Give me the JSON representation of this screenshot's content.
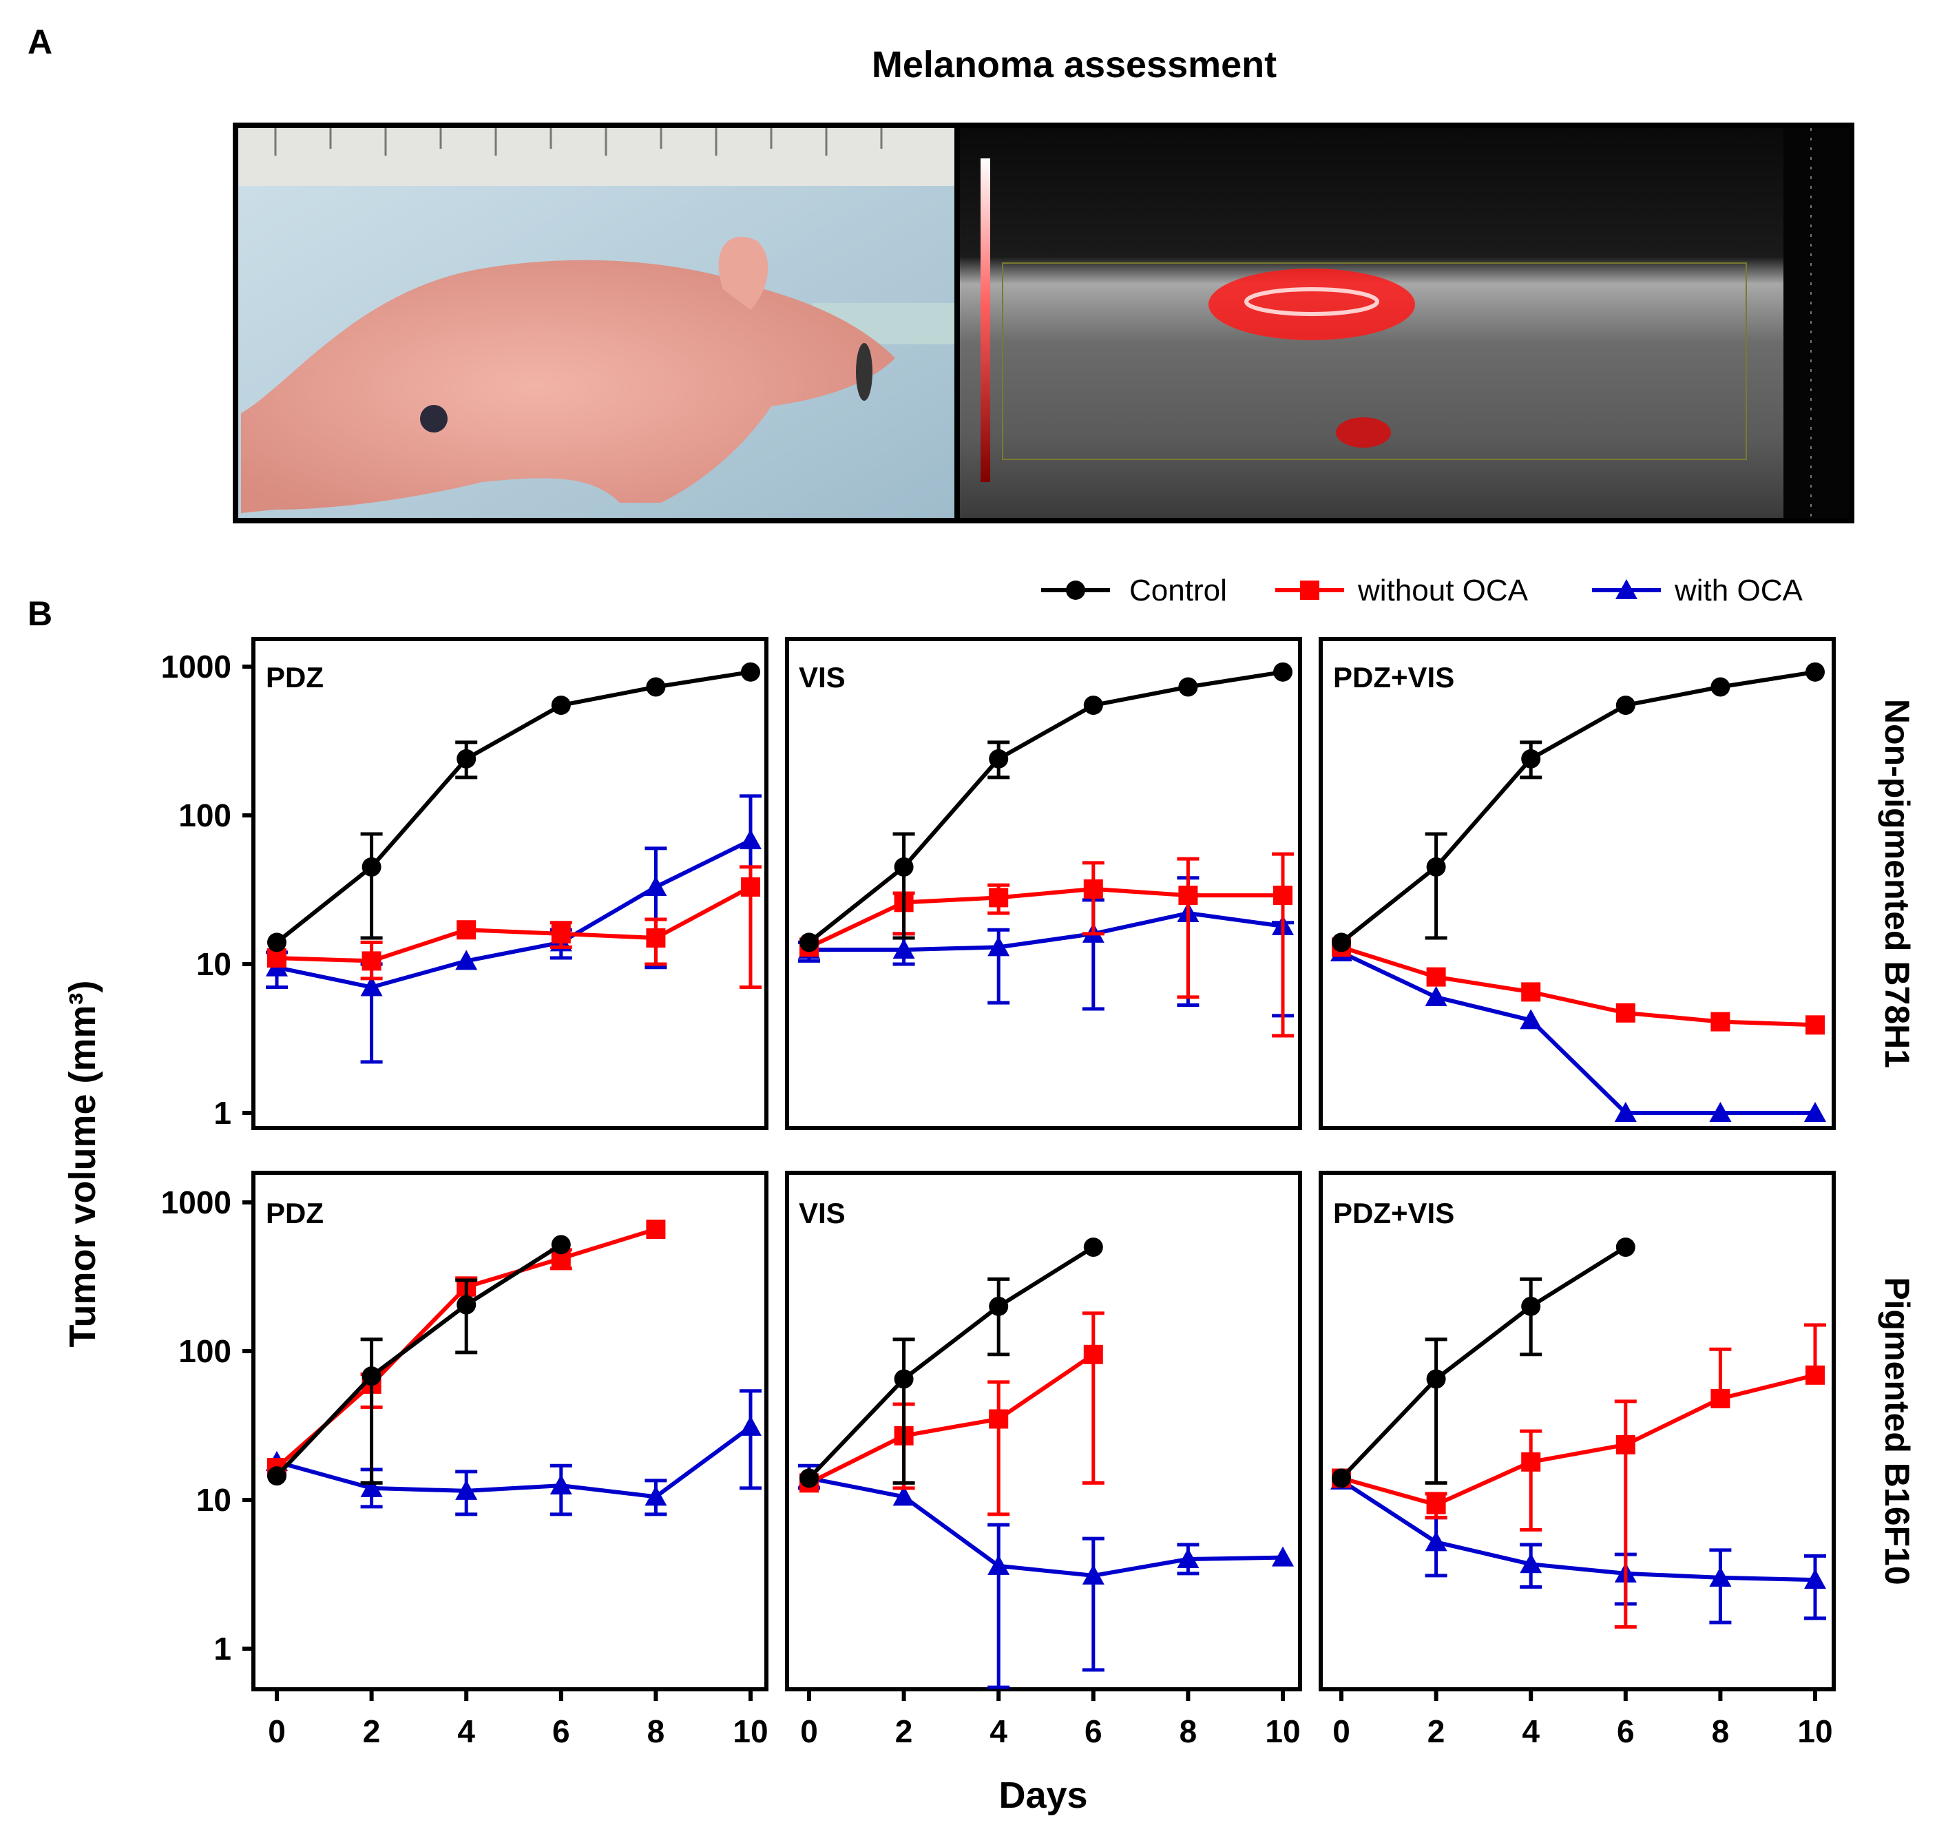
{
  "panel_a": {
    "label": "A",
    "title": "Melanoma assessment",
    "photo_description_icon": "mouse-photo",
    "ultrasound_icon": "ultrasound-image"
  },
  "panel_b": {
    "label": "B",
    "ylabel": "Tumor volume (mm³)",
    "xlabel": "Days",
    "row_labels": [
      "Non-pigmented B78H1",
      "Pigmented B16F10"
    ],
    "column_titles": [
      "PDZ",
      "VIS",
      "PDZ+VIS"
    ]
  },
  "legend": [
    {
      "name": "Control",
      "color": "#000000",
      "marker": "circle"
    },
    {
      "name": "without OCA",
      "color": "#ff0000",
      "marker": "square"
    },
    {
      "name": "with OCA",
      "color": "#0000cc",
      "marker": "triangle"
    }
  ],
  "axes": {
    "x_ticks": [
      "0",
      "2",
      "4",
      "6",
      "8",
      "10"
    ],
    "y_ticks": [
      "1",
      "10",
      "100",
      "1000"
    ]
  },
  "chart_data": [
    {
      "type": "line",
      "title": "PDZ",
      "row": "Non-pigmented B78H1",
      "xlabel": "Days",
      "ylabel": "Tumor volume (mm³)",
      "yscale": "log",
      "ylim": [
        0.6,
        1300
      ],
      "xlim": [
        -0.5,
        10.5
      ],
      "series": [
        {
          "name": "Control",
          "x": [
            0,
            2,
            4,
            6,
            8,
            10
          ],
          "y": [
            14,
            45,
            240,
            550,
            730,
            920
          ],
          "err_low": [
            null,
            15,
            180,
            null,
            null,
            null
          ],
          "err_high": [
            null,
            75,
            310,
            null,
            null,
            null
          ]
        },
        {
          "name": "without OCA",
          "x": [
            0,
            2,
            4,
            6,
            8,
            10
          ],
          "y": [
            11,
            10.5,
            17,
            16,
            15,
            33
          ],
          "err_low": [
            null,
            8,
            null,
            13,
            10,
            7
          ],
          "err_high": [
            null,
            14,
            null,
            19,
            20,
            45
          ]
        },
        {
          "name": "with OCA",
          "x": [
            0,
            2,
            4,
            6,
            8,
            10
          ],
          "y": [
            9.5,
            7,
            10.5,
            14,
            33,
            68
          ],
          "err_low": [
            7,
            2.2,
            null,
            11,
            9.5,
            7
          ],
          "err_high": [
            12,
            10,
            null,
            17,
            60,
            135
          ]
        }
      ]
    },
    {
      "type": "line",
      "title": "VIS",
      "row": "Non-pigmented B78H1",
      "xlabel": "Days",
      "ylabel": "Tumor volume (mm³)",
      "yscale": "log",
      "ylim": [
        0.6,
        1300
      ],
      "xlim": [
        -0.5,
        10.5
      ],
      "series": [
        {
          "name": "Control",
          "x": [
            0,
            2,
            4,
            6,
            8,
            10
          ],
          "y": [
            14,
            45,
            240,
            550,
            730,
            920
          ],
          "err_low": [
            null,
            15,
            180,
            null,
            null,
            null
          ],
          "err_high": [
            null,
            75,
            310,
            null,
            null,
            null
          ]
        },
        {
          "name": "without OCA",
          "x": [
            0,
            2,
            4,
            6,
            8,
            10
          ],
          "y": [
            13,
            26,
            28,
            32,
            29,
            29
          ],
          "err_low": [
            null,
            16,
            22,
            16,
            6,
            3.3
          ],
          "err_high": [
            null,
            30,
            34,
            48,
            51,
            55
          ]
        },
        {
          "name": "with OCA",
          "x": [
            0,
            2,
            4,
            6,
            8,
            10
          ],
          "y": [
            12.5,
            12.5,
            13,
            16,
            22,
            18
          ],
          "err_low": [
            10.5,
            10,
            5.5,
            5,
            5.3,
            4.5
          ],
          "err_high": [
            14,
            16,
            17,
            27,
            38,
            19
          ]
        }
      ]
    },
    {
      "type": "line",
      "title": "PDZ+VIS",
      "row": "Non-pigmented B78H1",
      "xlabel": "Days",
      "ylabel": "Tumor volume (mm³)",
      "yscale": "log",
      "ylim": [
        0.6,
        1300
      ],
      "xlim": [
        -0.5,
        10.5
      ],
      "series": [
        {
          "name": "Control",
          "x": [
            0,
            2,
            4,
            6,
            8,
            10
          ],
          "y": [
            14,
            45,
            240,
            550,
            730,
            920
          ],
          "err_low": [
            null,
            15,
            180,
            null,
            null,
            null
          ],
          "err_high": [
            null,
            75,
            310,
            null,
            null,
            null
          ]
        },
        {
          "name": "without OCA",
          "x": [
            0,
            2,
            4,
            6,
            8,
            10
          ],
          "y": [
            13,
            8.2,
            6.5,
            4.7,
            4.1,
            3.9
          ],
          "err_low": [
            null,
            null,
            null,
            null,
            null,
            null
          ],
          "err_high": [
            null,
            null,
            null,
            null,
            null,
            null
          ]
        },
        {
          "name": "with OCA",
          "x": [
            0,
            2,
            4,
            6,
            8,
            10
          ],
          "y": [
            12,
            6,
            4.2,
            1,
            1,
            1
          ],
          "err_low": [
            null,
            null,
            null,
            null,
            null,
            null
          ],
          "err_high": [
            null,
            null,
            null,
            null,
            null,
            null
          ]
        }
      ]
    },
    {
      "type": "line",
      "title": "PDZ",
      "row": "Pigmented B16F10",
      "xlabel": "Days",
      "ylabel": "Tumor volume (mm³)",
      "yscale": "log",
      "ylim": [
        0.6,
        1300
      ],
      "xlim": [
        -0.5,
        10.5
      ],
      "series": [
        {
          "name": "Control",
          "x": [
            0,
            2,
            4,
            6
          ],
          "y": [
            14.5,
            68,
            205,
            520
          ],
          "err_low": [
            null,
            13,
            98,
            null
          ],
          "err_high": [
            null,
            120,
            300,
            null
          ]
        },
        {
          "name": "without OCA",
          "x": [
            0,
            2,
            4,
            6,
            8
          ],
          "y": [
            16.5,
            60,
            270,
            420,
            660
          ],
          "err_low": [
            null,
            42,
            null,
            360,
            null
          ],
          "err_high": [
            null,
            70,
            310,
            480,
            null
          ]
        },
        {
          "name": "with OCA",
          "x": [
            0,
            2,
            4,
            6,
            8,
            10
          ],
          "y": [
            18,
            12,
            11.5,
            12.5,
            10.5,
            31
          ],
          "err_low": [
            null,
            9,
            8,
            8,
            8,
            12
          ],
          "err_high": [
            null,
            16,
            15.5,
            17,
            13.5,
            54
          ]
        }
      ]
    },
    {
      "type": "line",
      "title": "VIS",
      "row": "Pigmented B16F10",
      "xlabel": "Days",
      "ylabel": "Tumor volume (mm³)",
      "yscale": "log",
      "ylim": [
        0.6,
        1300
      ],
      "xlim": [
        -0.5,
        10.5
      ],
      "series": [
        {
          "name": "Control",
          "x": [
            0,
            2,
            4,
            6
          ],
          "y": [
            14,
            65,
            200,
            500
          ],
          "err_low": [
            null,
            13,
            95,
            null
          ],
          "err_high": [
            null,
            120,
            305,
            null
          ]
        },
        {
          "name": "without OCA",
          "x": [
            0,
            2,
            4,
            6
          ],
          "y": [
            13,
            27,
            35,
            95
          ],
          "err_low": [
            null,
            12,
            8,
            13
          ],
          "err_high": [
            null,
            44,
            62,
            180
          ]
        },
        {
          "name": "with OCA",
          "x": [
            0,
            2,
            4,
            6,
            8,
            10
          ],
          "y": [
            14,
            10.5,
            3.6,
            3.1,
            4,
            4.1
          ],
          "err_low": [
            12,
            null,
            0.55,
            0.72,
            3.2,
            null
          ],
          "err_high": [
            17,
            null,
            6.8,
            5.5,
            5,
            null
          ]
        }
      ]
    },
    {
      "type": "line",
      "title": "PDZ+VIS",
      "row": "Pigmented B16F10",
      "xlabel": "Days",
      "ylabel": "Tumor volume (mm³)",
      "yscale": "log",
      "ylim": [
        0.6,
        1300
      ],
      "xlim": [
        -0.5,
        10.5
      ],
      "series": [
        {
          "name": "Control",
          "x": [
            0,
            2,
            4,
            6
          ],
          "y": [
            14,
            65,
            200,
            500
          ],
          "err_low": [
            null,
            13,
            95,
            null
          ],
          "err_high": [
            null,
            120,
            305,
            null
          ]
        },
        {
          "name": "without OCA",
          "x": [
            0,
            2,
            4,
            6,
            8,
            10
          ],
          "y": [
            14,
            9.3,
            18,
            23.5,
            48,
            69
          ],
          "err_low": [
            null,
            7.6,
            6.3,
            1.4,
            null,
            null
          ],
          "err_high": [
            null,
            11,
            29,
            46,
            103,
            150
          ]
        },
        {
          "name": "with OCA",
          "x": [
            0,
            2,
            4,
            6,
            8,
            10
          ],
          "y": [
            13.5,
            5.2,
            3.7,
            3.2,
            3,
            2.9
          ],
          "err_low": [
            null,
            3.1,
            2.6,
            2,
            1.5,
            1.6
          ],
          "err_high": [
            null,
            7.6,
            5,
            4.3,
            4.6,
            4.2
          ]
        }
      ]
    }
  ]
}
